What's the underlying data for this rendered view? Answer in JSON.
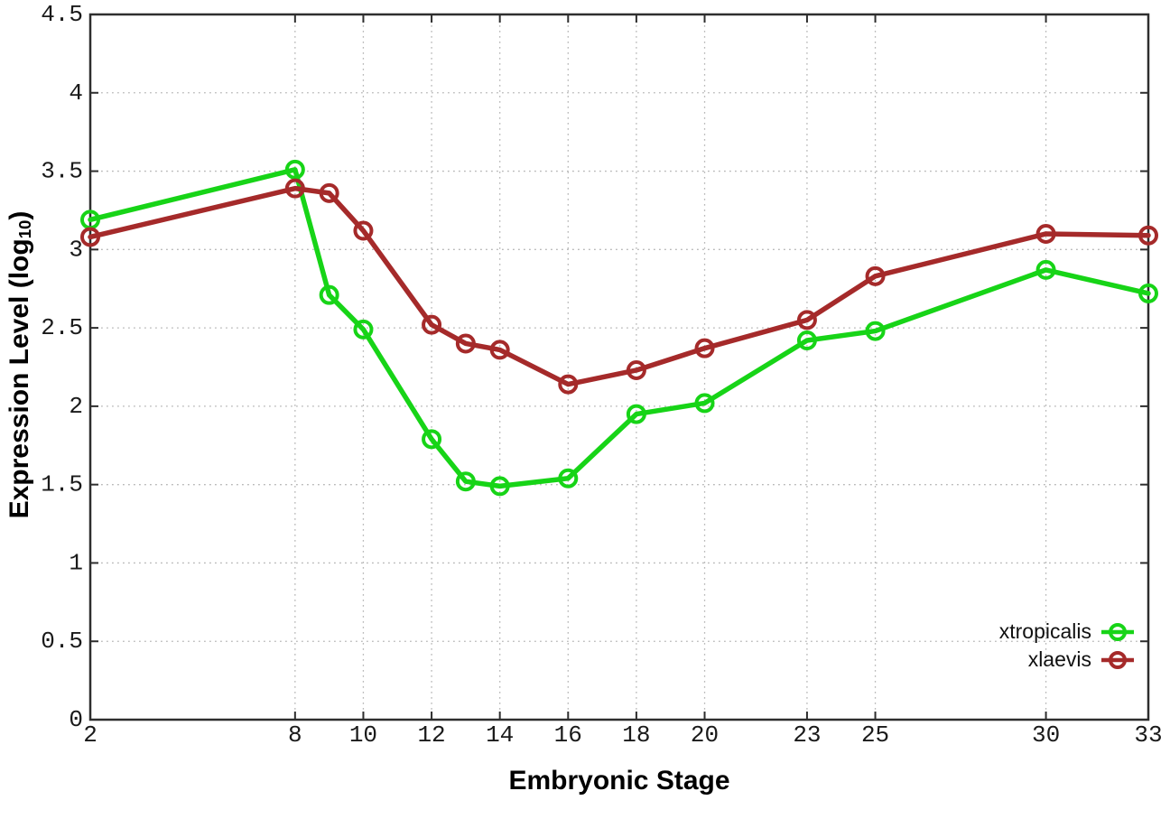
{
  "chart_data": {
    "type": "line",
    "title": "",
    "xlabel": "Embryonic Stage",
    "ylabel": {
      "prefix": "Expression Level (log",
      "sub": "10",
      "suffix": ")"
    },
    "xlim": [
      2,
      33
    ],
    "ylim": [
      0,
      4.5
    ],
    "grid": true,
    "legend_position": "bottom-right",
    "x_ticks": [
      2,
      8,
      10,
      12,
      14,
      16,
      18,
      20,
      23,
      25,
      30,
      33
    ],
    "x_tick_labels": [
      "2",
      "8",
      "10",
      "12",
      "14",
      "16",
      "18",
      "20",
      "23",
      "25",
      "30",
      "33"
    ],
    "y_ticks": [
      0,
      0.5,
      1,
      1.5,
      2,
      2.5,
      3,
      3.5,
      4,
      4.5
    ],
    "y_tick_labels": [
      "0",
      "0.5",
      "1",
      "1.5",
      "2",
      "2.5",
      "3",
      "3.5",
      "4",
      "4.5"
    ],
    "x": [
      2,
      8,
      9,
      10,
      12,
      13,
      14,
      16,
      18,
      20,
      23,
      25,
      30,
      33
    ],
    "series": [
      {
        "name": "xtropicalis",
        "color": "#17d417",
        "values": [
          3.19,
          3.51,
          2.71,
          2.49,
          1.79,
          1.52,
          1.49,
          1.54,
          1.95,
          2.02,
          2.42,
          2.48,
          2.87,
          2.72
        ]
      },
      {
        "name": "xlaevis",
        "color": "#a52a2a",
        "values": [
          3.08,
          3.39,
          3.36,
          3.12,
          2.52,
          2.4,
          2.36,
          2.14,
          2.23,
          2.37,
          2.55,
          2.83,
          3.1,
          3.09
        ]
      }
    ]
  },
  "colors": {
    "grid": "#b8b8b8",
    "axis": "#2e2e2e",
    "text": "#1a1a1a",
    "background": "#ffffff"
  }
}
